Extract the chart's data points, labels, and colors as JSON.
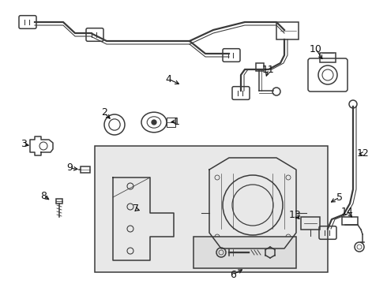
{
  "bg_color": "#ffffff",
  "line_color": "#3a3a3a",
  "label_color": "#111111",
  "fig_width": 4.9,
  "fig_height": 3.6,
  "dpi": 100,
  "box_fill": "#e8e8e8",
  "box_fill2": "#dddddd"
}
